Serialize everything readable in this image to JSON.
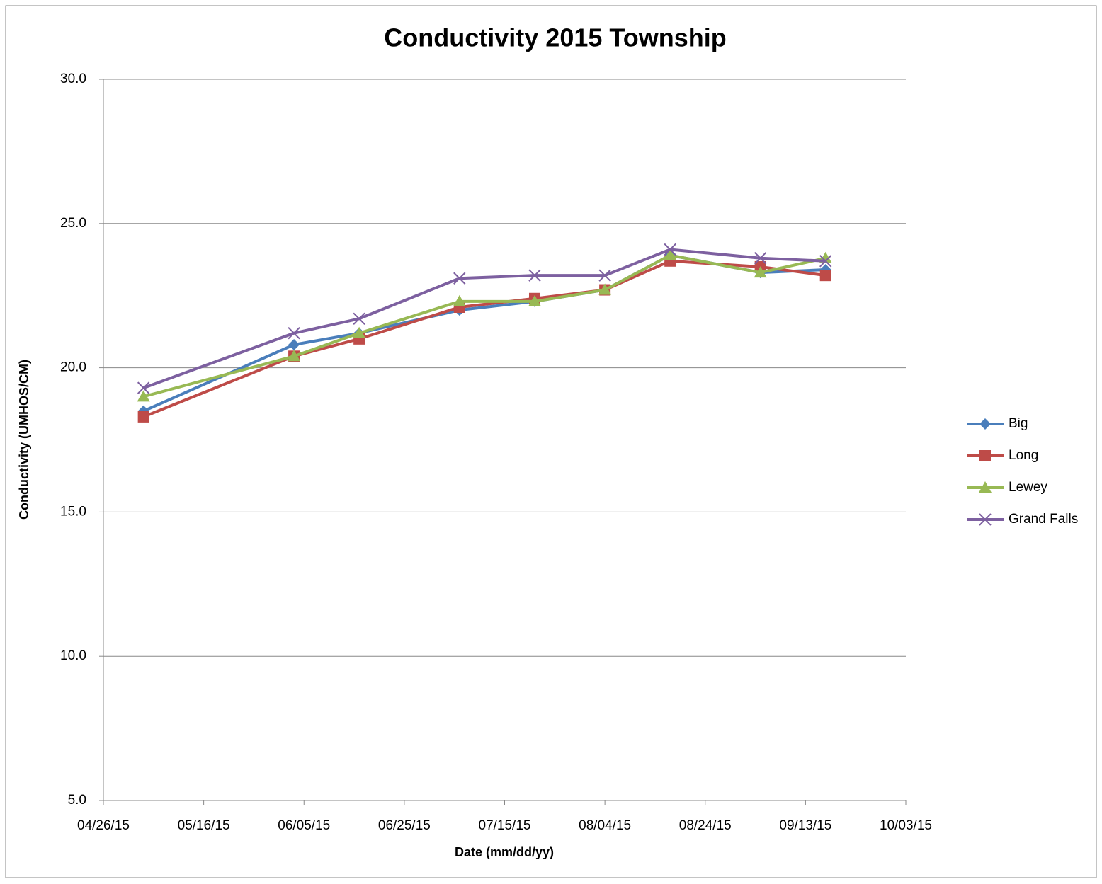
{
  "chart_data": {
    "type": "line",
    "title": "Conductivity 2015 Township",
    "x_label": "Date (mm/dd/yy)",
    "y_label": "Conductivity (UMHOS/CM)",
    "x": [
      "05/04/15",
      "06/03/15",
      "06/16/15",
      "07/06/15",
      "07/21/15",
      "08/04/15",
      "08/17/15",
      "09/04/15",
      "09/17/15"
    ],
    "xlim": [
      "04/26/15",
      "10/03/15"
    ],
    "xticks": [
      "04/26/15",
      "05/16/15",
      "06/05/15",
      "06/25/15",
      "07/15/15",
      "08/04/15",
      "08/24/15",
      "09/13/15",
      "10/03/15"
    ],
    "ylim": [
      5,
      30
    ],
    "yticks": [
      {
        "value": 5,
        "label": "5.0"
      },
      {
        "value": 10,
        "label": "10.0"
      },
      {
        "value": 15,
        "label": "15.0"
      },
      {
        "value": 20,
        "label": "20.0"
      },
      {
        "value": 25,
        "label": "25.0"
      },
      {
        "value": 30,
        "label": "30.0"
      }
    ],
    "grid": true,
    "legend": "right",
    "series": [
      {
        "name": "Big",
        "color": "#4a7ebb",
        "marker": "diamond",
        "values": [
          18.5,
          20.8,
          21.2,
          22.0,
          22.3,
          22.7,
          23.9,
          23.3,
          23.4
        ]
      },
      {
        "name": "Long",
        "color": "#be4b48",
        "marker": "square",
        "values": [
          18.3,
          20.4,
          21.0,
          22.1,
          22.4,
          22.7,
          23.7,
          23.5,
          23.2
        ]
      },
      {
        "name": "Lewey",
        "color": "#98b954",
        "marker": "triangle",
        "values": [
          19.0,
          20.4,
          21.2,
          22.3,
          22.3,
          22.7,
          23.9,
          23.3,
          23.8
        ]
      },
      {
        "name": "Grand Falls",
        "color": "#7d60a0",
        "marker": "x",
        "values": [
          19.3,
          21.2,
          21.7,
          23.1,
          23.2,
          23.2,
          24.1,
          23.8,
          23.7
        ]
      }
    ]
  }
}
